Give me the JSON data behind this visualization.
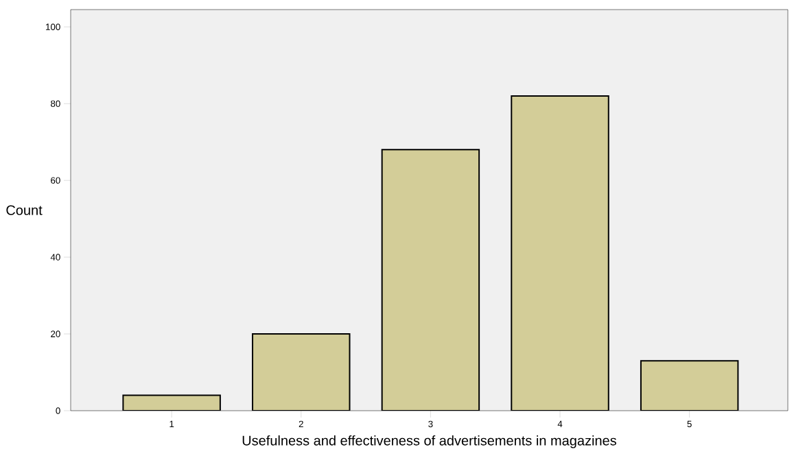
{
  "chart_data": {
    "type": "bar",
    "xlabel": "Usefulness and effectiveness of advertisements  in magazines",
    "ylabel": "Count",
    "categories": [
      "1",
      "2",
      "3",
      "4",
      "5"
    ],
    "values": [
      4,
      20,
      68,
      82,
      13
    ],
    "color": "#d3cd98",
    "ylim": [
      0,
      104.5
    ],
    "yticks": [
      0,
      20,
      40,
      60,
      80,
      100
    ]
  }
}
